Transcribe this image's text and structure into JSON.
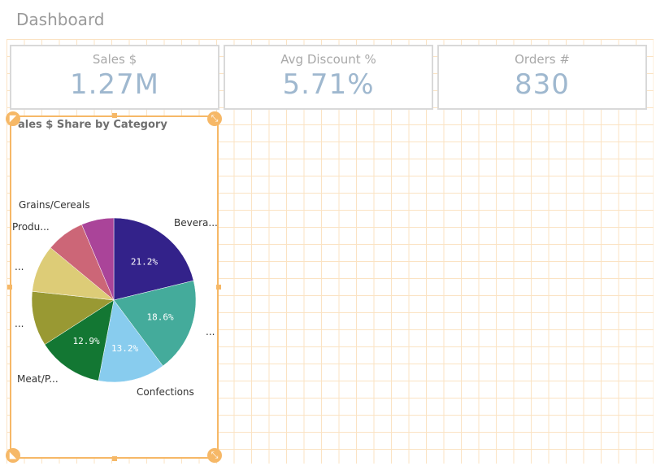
{
  "sheet": {
    "title": "Dashboard"
  },
  "kpis": [
    {
      "label": "Sales $",
      "value": "1.27M"
    },
    {
      "label": "Avg Discount %",
      "value": "5.71%"
    },
    {
      "label": "Orders #",
      "value": "830"
    }
  ],
  "pie": {
    "title": "ales $ Share by Category",
    "chart_data": {
      "type": "pie",
      "title": "ales $ Share by Category",
      "slices": [
        {
          "label": "Bevera...",
          "value": 21.2,
          "display": "21.2%",
          "color": "#33228a"
        },
        {
          "label": "...",
          "value": 18.6,
          "display": "18.6%",
          "color": "#44ab9b"
        },
        {
          "label": "Confections",
          "value": 13.2,
          "display": "13.2%",
          "color": "#88ccee"
        },
        {
          "label": "Meat/P...",
          "value": 12.9,
          "display": "12.9%",
          "color": "#137733"
        },
        {
          "label": "...",
          "value": 10.8,
          "display": "",
          "color": "#999933"
        },
        {
          "label": "...",
          "value": 9.3,
          "display": "",
          "color": "#ddcc77"
        },
        {
          "label": "Produ...",
          "value": 7.6,
          "display": "",
          "color": "#cc6677"
        },
        {
          "label": "Grains/Cereals",
          "value": 6.4,
          "display": "",
          "color": "#aa4499"
        }
      ]
    }
  },
  "colors": {
    "selection": "#f6b867",
    "kpi_value": "#9fb8cf"
  },
  "icons": {
    "top_left": "chevron-up-left-icon",
    "top_right": "resize-icon",
    "bottom_left": "chevron-down-left-icon",
    "bottom_right": "resize-icon"
  }
}
